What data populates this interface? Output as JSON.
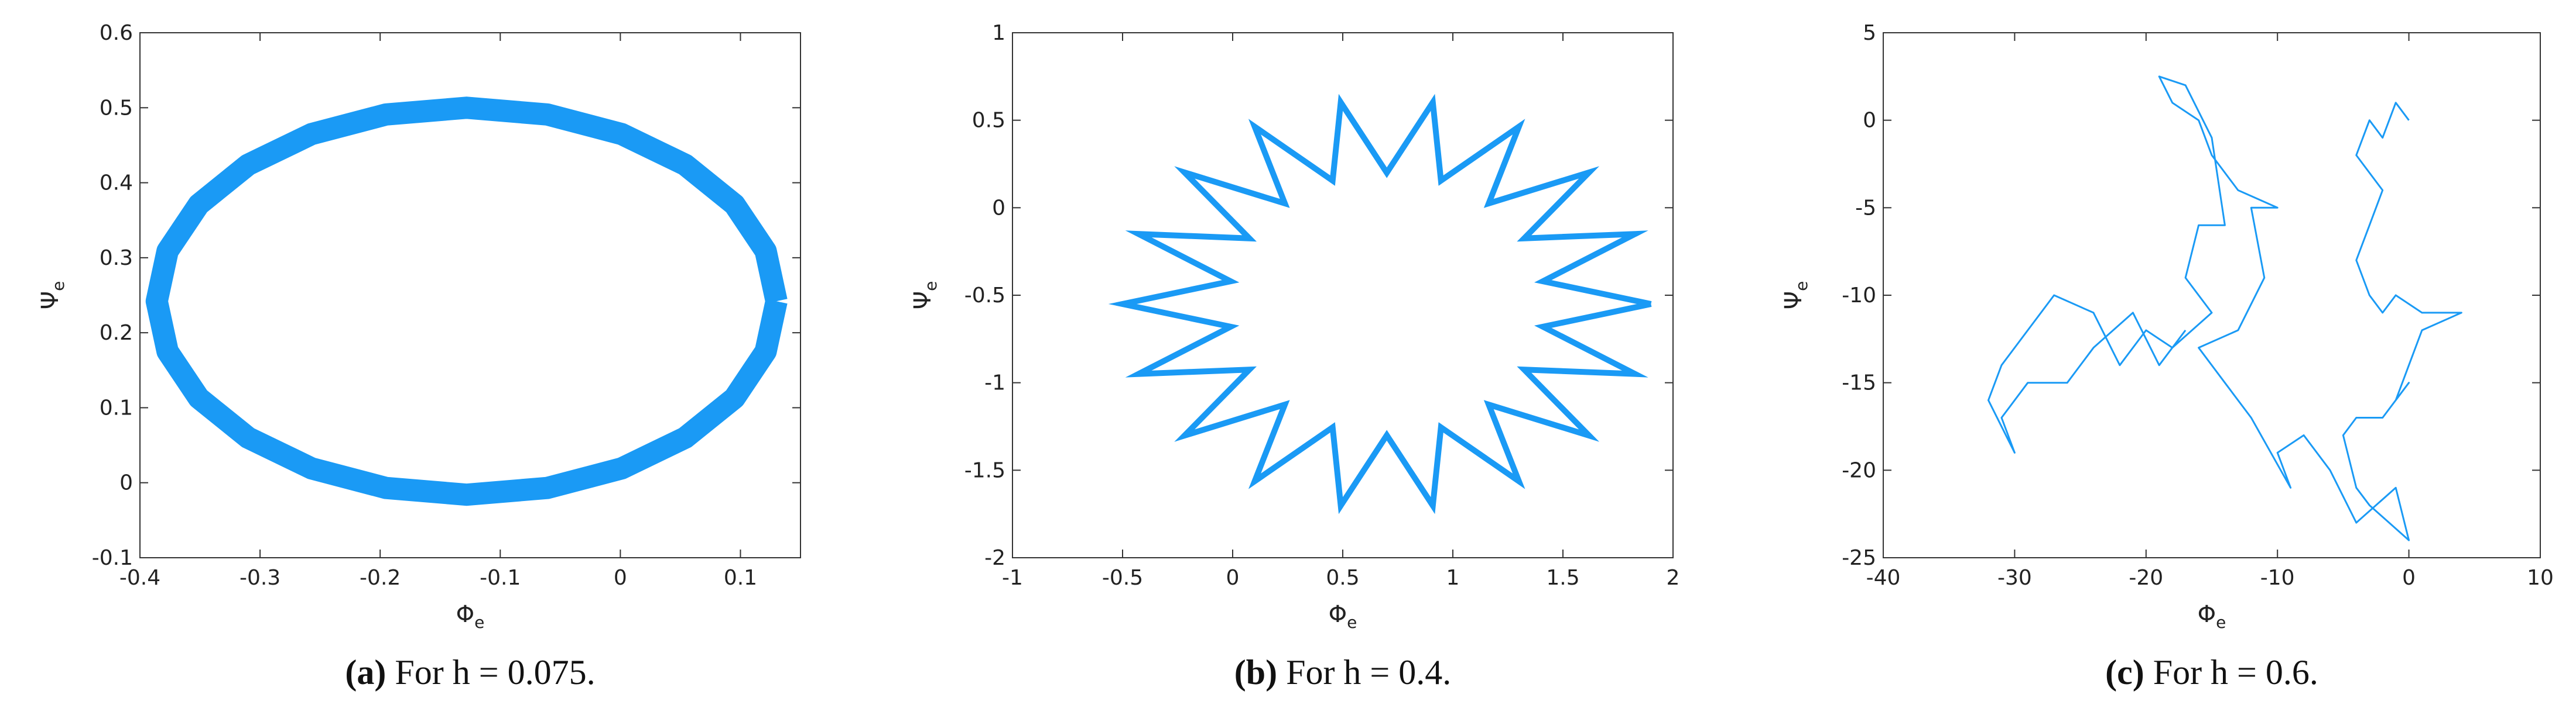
{
  "chart_data": [
    {
      "type": "line",
      "xlabel": "Φ",
      "xlabel_subscript": "e",
      "ylabel": "Ψ",
      "ylabel_subscript": "e",
      "caption_tag": "(a)",
      "caption": "For h = 0.075.",
      "xlim": [
        -0.4,
        0.15
      ],
      "ylim": [
        -0.1,
        0.6
      ],
      "xticks": [
        -0.4,
        -0.3,
        -0.2,
        -0.1,
        0,
        0.1
      ],
      "yticks": [
        -0.1,
        0,
        0.1,
        0.2,
        0.3,
        0.4,
        0.5,
        0.6
      ],
      "series": [
        {
          "color": "#1a9af5",
          "x": [
            0.13,
            0.121,
            0.095,
            0.054,
            0.001,
            -0.061,
            -0.128,
            -0.195,
            -0.257,
            -0.31,
            -0.351,
            -0.377,
            -0.386,
            -0.377,
            -0.351,
            -0.31,
            -0.257,
            -0.195,
            -0.128,
            -0.061,
            0.001,
            0.054,
            0.095,
            0.121,
            0.13
          ],
          "values": [
            0.242,
            0.309,
            0.371,
            0.424,
            0.465,
            0.491,
            0.5,
            0.491,
            0.465,
            0.424,
            0.371,
            0.309,
            0.242,
            0.175,
            0.113,
            0.06,
            0.019,
            -0.007,
            -0.016,
            -0.007,
            0.019,
            0.06,
            0.113,
            0.175,
            0.242
          ]
        }
      ]
    },
    {
      "type": "line",
      "xlabel": "Φ",
      "xlabel_subscript": "e",
      "ylabel": "Ψ",
      "ylabel_subscript": "e",
      "caption_tag": "(b)",
      "caption": "For h = 0.4.",
      "xlim": [
        -1,
        2
      ],
      "ylim": [
        -2,
        1
      ],
      "xticks": [
        -1,
        -0.5,
        0,
        0.5,
        1,
        1.5,
        2
      ],
      "yticks": [
        -2,
        -1.5,
        -1,
        -0.5,
        0,
        0.5,
        1
      ],
      "series": [
        {
          "color": "#1a9af5",
          "x": [
            1.9,
            1.409,
            1.828,
            1.324,
            1.619,
            1.163,
            1.3,
            0.946,
            0.909,
            0.7,
            0.491,
            0.454,
            0.1,
            0.237,
            -0.219,
            0.076,
            -0.428,
            -0.009,
            -0.5,
            -0.009,
            -0.428,
            0.076,
            -0.219,
            0.237,
            0.1,
            0.454,
            0.491,
            0.7,
            0.909,
            0.946,
            1.3,
            1.163,
            1.619,
            1.324,
            1.828,
            1.409,
            1.9
          ],
          "values": [
            -0.55,
            -0.42,
            -0.15,
            -0.175,
            0.202,
            0.025,
            0.463,
            0.155,
            0.602,
            0.2,
            0.602,
            0.155,
            0.463,
            0.025,
            0.202,
            -0.175,
            -0.15,
            -0.42,
            -0.55,
            -0.68,
            -0.95,
            -0.925,
            -1.302,
            -1.125,
            -1.563,
            -1.255,
            -1.702,
            -1.3,
            -1.702,
            -1.255,
            -1.563,
            -1.125,
            -1.302,
            -0.925,
            -0.95,
            -0.68,
            -0.55
          ]
        }
      ]
    },
    {
      "type": "line",
      "xlabel": "Φ",
      "xlabel_subscript": "e",
      "ylabel": "Ψ",
      "ylabel_subscript": "e",
      "caption_tag": "(c)",
      "caption": "For h = 0.6.",
      "xlim": [
        -40,
        10
      ],
      "ylim": [
        -25,
        5
      ],
      "xticks": [
        -40,
        -30,
        -20,
        -10,
        0,
        10
      ],
      "yticks": [
        -25,
        -20,
        -15,
        -10,
        -5,
        0,
        5
      ],
      "series": [
        {
          "color": "#1a9af5",
          "x": [
            0,
            -1,
            -2,
            -3,
            -4,
            -2,
            -3,
            -4,
            -3,
            -2,
            -1,
            1,
            3,
            4,
            1,
            0,
            -1,
            0,
            -2,
            -4,
            -5,
            -4,
            -3,
            0,
            -1,
            -4,
            -6,
            -8,
            -10,
            -9,
            -12,
            -14,
            -16,
            -13,
            -11,
            -12,
            -10,
            -13,
            -15,
            -16,
            -18,
            -19,
            -17,
            -15,
            -14,
            -16,
            -17,
            -15,
            -18,
            -20,
            -22,
            -24,
            -27,
            -29,
            -31,
            -32,
            -30,
            -31,
            -29,
            -26,
            -24,
            -21,
            -19,
            -17
          ],
          "values": [
            0,
            1,
            -1,
            0,
            -2,
            -4,
            -6,
            -8,
            -10,
            -11,
            -10,
            -11,
            -11,
            -11,
            -12,
            -14,
            -16,
            -15,
            -17,
            -17,
            -18,
            -21,
            -22,
            -24,
            -21,
            -23,
            -20,
            -18,
            -19,
            -21,
            -17,
            -15,
            -13,
            -12,
            -9,
            -5,
            -5,
            -4,
            -2,
            0,
            1,
            2.5,
            2,
            -1,
            -6,
            -6,
            -9,
            -11,
            -13,
            -12,
            -14,
            -11,
            -10,
            -12,
            -14,
            -16,
            -19,
            -17,
            -15,
            -15,
            -13,
            -11,
            -14,
            -12
          ]
        }
      ]
    }
  ]
}
